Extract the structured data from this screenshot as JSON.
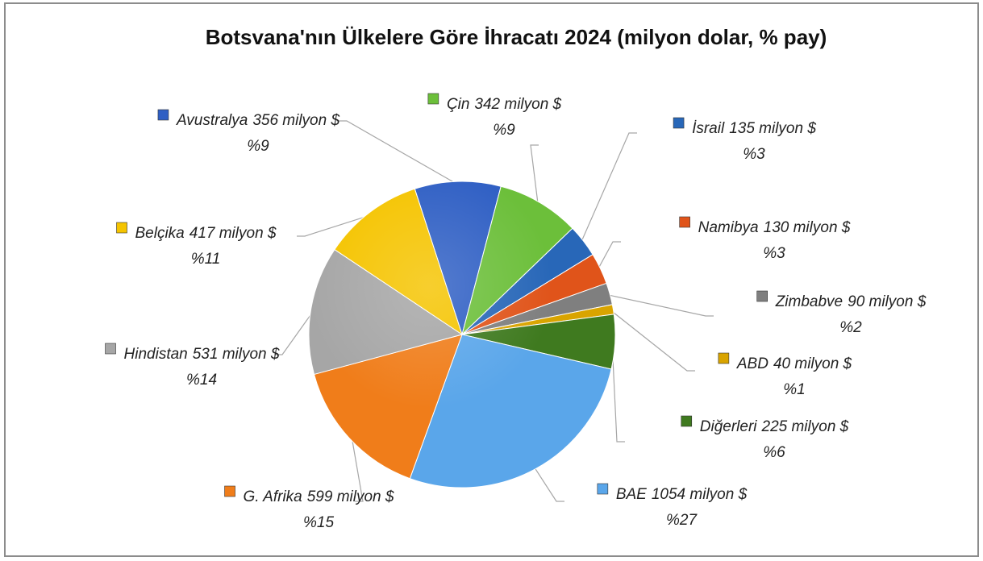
{
  "chart_data": {
    "type": "pie",
    "title": "Botsvana'nın Ülkelere Göre İhracatı 2024 (milyon dolar, % pay)",
    "categories": [
      "Avustralya",
      "Çin",
      "İsrail",
      "Namibya",
      "Zimbabve",
      "ABD",
      "Diğerleri",
      "BAE",
      "G. Afrika",
      "Hindistan",
      "Belçika"
    ],
    "values": [
      356,
      342,
      135,
      130,
      90,
      40,
      225,
      1054,
      599,
      531,
      417
    ],
    "value_labels": [
      "356 milyon $",
      "342 milyon $",
      "135 milyon $",
      "130 milyon $",
      "90 milyon $",
      "40 milyon $",
      "225 milyon $",
      "1054 milyon $",
      "599 milyon $",
      "531 milyon $",
      "417 milyon $"
    ],
    "shares": [
      9,
      9,
      3,
      3,
      2,
      1,
      6,
      27,
      15,
      14,
      11
    ],
    "share_labels": [
      "%9",
      "%9",
      "%3",
      "%3",
      "%2",
      "%1",
      "%6",
      "%27",
      "%15",
      "%14",
      "%11"
    ],
    "colors": [
      "#2f5fc4",
      "#6cbf3a",
      "#2867b8",
      "#e0541a",
      "#7f7f7f",
      "#d9a400",
      "#3f7a1f",
      "#5aa6ea",
      "#f07d1a",
      "#a6a6a6",
      "#f5c400"
    ]
  }
}
